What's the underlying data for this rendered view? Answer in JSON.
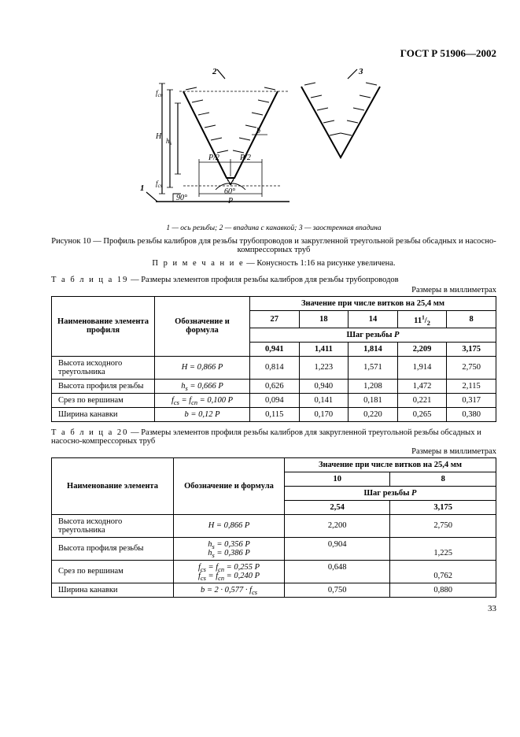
{
  "header": {
    "doc_id": "ГОСТ Р 51906—2002"
  },
  "figure": {
    "markers": {
      "m1": "1",
      "m2": "2",
      "m3": "3"
    },
    "labels": {
      "H": "H",
      "hs": "h",
      "fcs": "f",
      "fcn": "f",
      "P2a": "P/2",
      "P2b": "P/2",
      "P": "P",
      "a60": "60°",
      "a90": "90°",
      "b": "b"
    },
    "legend": "1 — ось резьбы; 2 — впадина с канавкой; 3 — заостренная впадина",
    "caption": "Рисунок 10 — Профиль резьбы калибров для резьбы трубопроводов и закругленной треугольной резьбы обсадных и насосно-компрессорных труб",
    "note_label": "П р и м е ч а н и е",
    "note_text": " — Конусность 1:16 на рисунке увеличена."
  },
  "tables": {
    "t19": {
      "title_label": "Т а б л и ц а  19",
      "title_rest": " — Размеры элементов профиля резьбы калибров для резьбы трубопроводов",
      "units": "Размеры в миллиметрах",
      "head": {
        "c1": "Наименование элемента профиля",
        "c2": "Обозначение и формула",
        "c3": "Значение при числе витков на 25,4 мм",
        "v": [
          "27",
          "18",
          "14",
          "11¹/₂",
          "8"
        ],
        "pitch": "Шаг резьбы P",
        "p": [
          "0,941",
          "1,411",
          "1,814",
          "2,209",
          "3,175"
        ]
      },
      "rows": [
        {
          "name": "Высота исходного треугольника",
          "formula_html": "<span class='formula'><i>H</i> = 0,866 <i>P</i></span>",
          "vals": [
            "0,814",
            "1,223",
            "1,571",
            "1,914",
            "2,750"
          ]
        },
        {
          "name": "Высота профиля резьбы",
          "formula_html": "<span class='formula'><i>h<sub>s</sub></i> = 0,666 <i>P</i></span>",
          "vals": [
            "0,626",
            "0,940",
            "1,208",
            "1,472",
            "2,115"
          ]
        },
        {
          "name": "Срез по вершинам",
          "formula_html": "<span class='formula'><i>f</i><sub>cs</sub> = <i>f</i><sub>cn</sub> = 0,100 <i>P</i></span>",
          "vals": [
            "0,094",
            "0,141",
            "0,181",
            "0,221",
            "0,317"
          ]
        },
        {
          "name": "Ширина канавки",
          "formula_html": "<span class='formula'><i>b</i> = 0,12 <i>P</i></span>",
          "vals": [
            "0,115",
            "0,170",
            "0,220",
            "0,265",
            "0,380"
          ]
        }
      ]
    },
    "t20": {
      "title_label": "Т а б л и ц а  20",
      "title_rest": " — Размеры элементов профиля резьбы калибров для закругленной треугольной резьбы обсадных и насосно-компрессорных труб",
      "units": "Размеры в миллиметрах",
      "head": {
        "c1": "Наименование элемента",
        "c2": "Обозначение и формула",
        "c3": "Значение при числе витков на 25,4 мм",
        "v": [
          "10",
          "8"
        ],
        "pitch": "Шаг резьбы P",
        "p": [
          "2,54",
          "3,175"
        ]
      },
      "rows": [
        {
          "name": "Высота исходного треугольника",
          "formula_html": "<span class='formula'><i>H</i> = 0,866 <i>P</i></span>",
          "vals": [
            "2,200",
            "2,750"
          ]
        },
        {
          "name": "Высота профиля резьбы",
          "formula_html": "<span class='formula'><i>h<sub>s</sub></i> = 0,356 <i>P</i><br><i>h<sub>s</sub></i> = 0,386 <i>P</i></span>",
          "vals": [
            "0,904",
            "1,225"
          ]
        },
        {
          "name": "Срез по вершинам",
          "formula_html": "<span class='formula'><i>f</i><sub>cs</sub> = <i>f</i><sub>cn</sub> = 0,255 <i>P</i><br><i>f</i><sub>cs</sub> = <i>f</i><sub>cn</sub> = 0,240 <i>P</i></span>",
          "vals": [
            "0,648",
            "0,762"
          ]
        },
        {
          "name": "Ширина канавки",
          "formula_html": "<span class='formula'><i>b</i> = 2 · 0,577 · <i>f</i><sub>cs</sub></span>",
          "vals": [
            "0,750",
            "0,880"
          ]
        }
      ]
    }
  },
  "page_number": "33"
}
